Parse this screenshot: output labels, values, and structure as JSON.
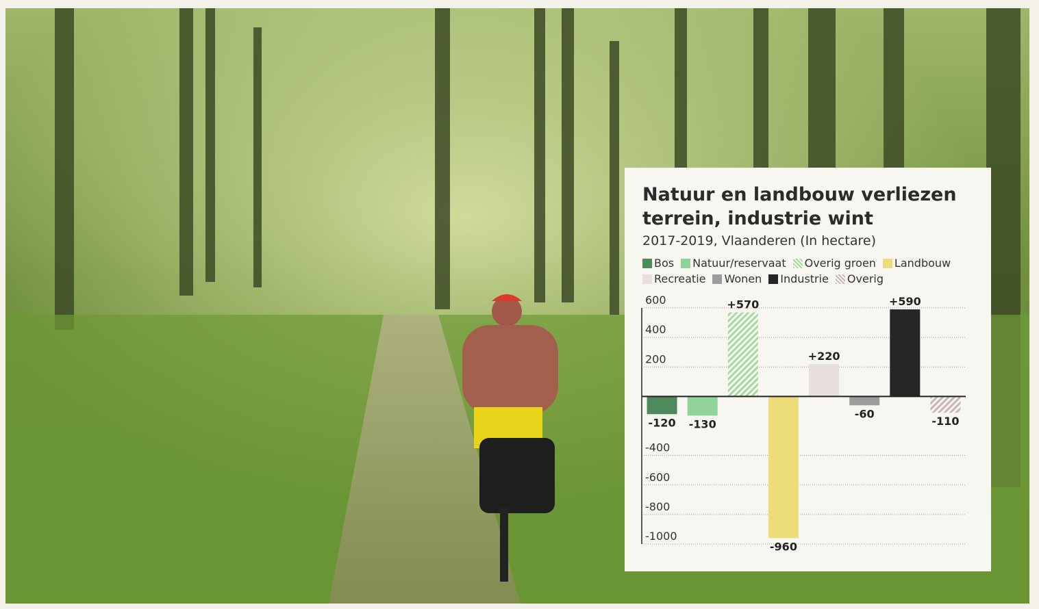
{
  "chart_data": {
    "type": "bar",
    "title": "Natuur en landbouw verliezen terrein, industrie wint",
    "subtitle": "2017-2019, Vlaanderen (In hectare)",
    "categories": [
      "Bos",
      "Natuur/reservaat",
      "Overig groen",
      "Landbouw",
      "Recreatie",
      "Wonen",
      "Industrie",
      "Overig"
    ],
    "values": [
      -120,
      -130,
      570,
      -960,
      220,
      -60,
      590,
      -110
    ],
    "value_labels": [
      "-120",
      "-130",
      "+570",
      "-960",
      "+220",
      "-60",
      "+590",
      "-110"
    ],
    "colors": [
      "#4e8a5c",
      "#8fd39a",
      "#a6d8a0",
      "#ecdc7a",
      "#e9dfdc",
      "#9c9c9c",
      "#262626",
      "#c9b6b8"
    ],
    "hatched": [
      false,
      false,
      true,
      false,
      false,
      false,
      false,
      true
    ],
    "ylim": [
      -1000,
      600
    ],
    "yticks": [
      600,
      400,
      200,
      -400,
      -600,
      -800,
      -1000
    ],
    "grid": true
  }
}
